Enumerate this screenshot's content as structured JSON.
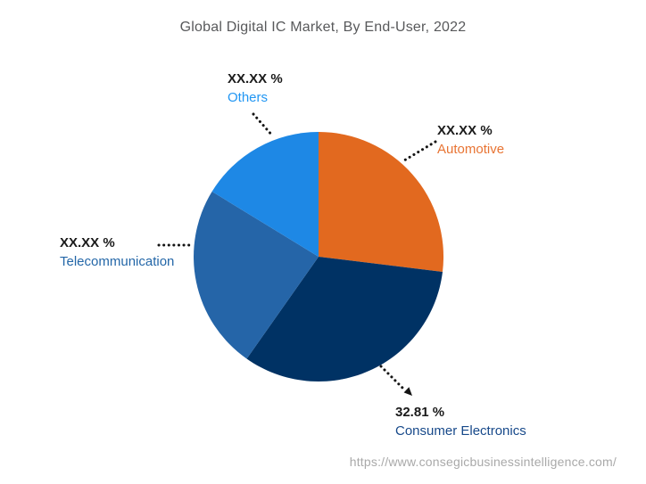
{
  "chart_data": {
    "type": "pie",
    "title": "Global Digital IC Market, By End-User, 2022",
    "start_angle_deg": -90,
    "direction": "clockwise",
    "slices": [
      {
        "label": "Automotive",
        "display_value": "XX.XX %",
        "percent_est": 26.94,
        "color": "#e2691f",
        "label_color": "#e87433"
      },
      {
        "label": "Consumer Electronics",
        "display_value": "32.81 %",
        "percent_est": 32.81,
        "color": "#003264",
        "label_color": "#17498a"
      },
      {
        "label": "Telecommunication",
        "display_value": "XX.XX %",
        "percent_est": 24.0,
        "color": "#2565a8",
        "label_color": "#2467a8"
      },
      {
        "label": "Others",
        "display_value": "XX.XX %",
        "percent_est": 16.25,
        "color": "#1e88e5",
        "label_color": "#2196f3"
      }
    ],
    "leader_color": "#141414",
    "value_text_color": "#1a1a1a"
  },
  "footer": {
    "url": "https://www.consegicbusinessintelligence.com/"
  }
}
